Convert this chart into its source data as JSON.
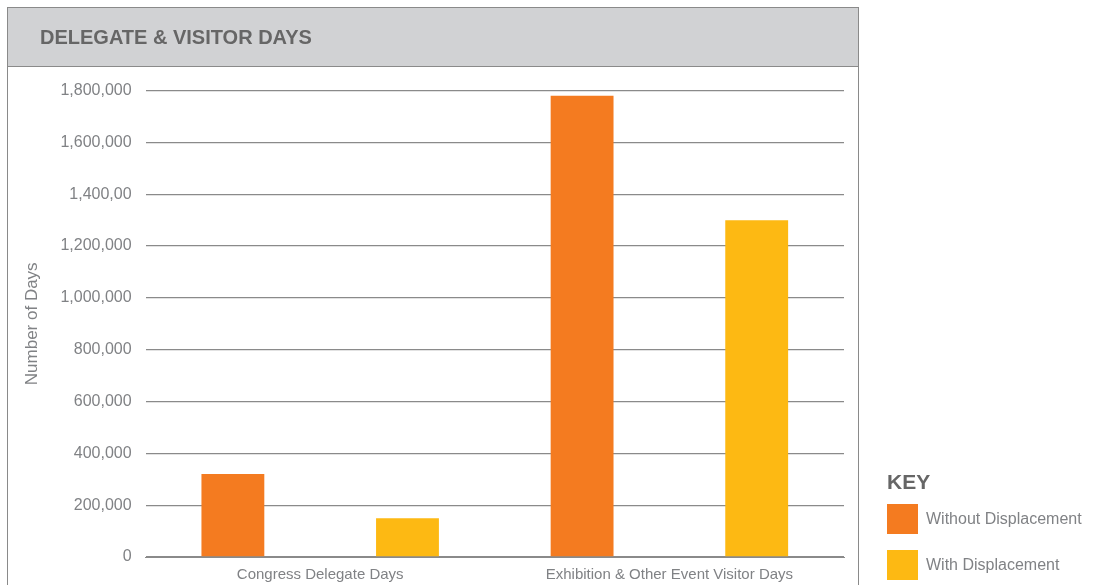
{
  "chart_data": {
    "type": "bar",
    "title": "DELEGATE & VISITOR DAYS",
    "ylabel": "Number of Days",
    "legend_title": "KEY",
    "legend": "bottom right",
    "grid": "y",
    "categories": [
      "Congress Delegate Days",
      "Exhibition & Other Event Visitor Days"
    ],
    "series": [
      {
        "name": "Without Displacement",
        "color": "#f47b20",
        "values": [
          320000,
          1780000
        ]
      },
      {
        "name": "With Displacement",
        "color": "#fdb913",
        "values": [
          150000,
          1300000
        ]
      }
    ],
    "ylim": [
      0,
      1800000
    ],
    "yticks": [
      0,
      {
        "value": 200000,
        "label": "200,000"
      },
      {
        "value": 400000,
        "label": "400,000"
      },
      {
        "value": 600000,
        "label": "600,000"
      },
      {
        "value": 800000,
        "label": "800,000"
      },
      {
        "value": 1000000,
        "label": "1,000,000"
      },
      {
        "value": 1200000,
        "label": "1,200,000"
      },
      {
        "value": 1400000,
        "label": "1,400,00"
      },
      {
        "value": 1600000,
        "label": "1,600,000"
      },
      {
        "value": 1800000,
        "label": "1,800,000"
      }
    ]
  }
}
